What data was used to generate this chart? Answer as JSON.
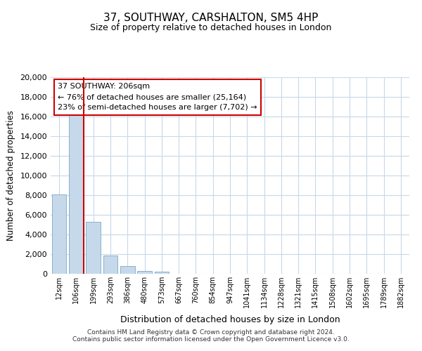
{
  "title": "37, SOUTHWAY, CARSHALTON, SM5 4HP",
  "subtitle": "Size of property relative to detached houses in London",
  "xlabel": "Distribution of detached houses by size in London",
  "ylabel": "Number of detached properties",
  "categories": [
    "12sqm",
    "106sqm",
    "199sqm",
    "293sqm",
    "386sqm",
    "480sqm",
    "573sqm",
    "667sqm",
    "760sqm",
    "854sqm",
    "947sqm",
    "1041sqm",
    "1134sqm",
    "1228sqm",
    "1321sqm",
    "1415sqm",
    "1508sqm",
    "1602sqm",
    "1695sqm",
    "1789sqm",
    "1882sqm"
  ],
  "bar_values": [
    8100,
    16500,
    5300,
    1850,
    800,
    300,
    200,
    0,
    0,
    0,
    0,
    0,
    0,
    0,
    0,
    0,
    0,
    0,
    0,
    0,
    0
  ],
  "bar_color": "#c5d9ea",
  "bar_edge_color": "#8ab0cc",
  "property_line_color": "#cc0000",
  "property_line_x": 1.5,
  "annotation_title": "37 SOUTHWAY: 206sqm",
  "annotation_line1": "← 76% of detached houses are smaller (25,164)",
  "annotation_line2": "23% of semi-detached houses are larger (7,702) →",
  "annotation_box_color": "#ffffff",
  "annotation_box_edge_color": "#cc0000",
  "ylim": [
    0,
    20000
  ],
  "yticks": [
    0,
    2000,
    4000,
    6000,
    8000,
    10000,
    12000,
    14000,
    16000,
    18000,
    20000
  ],
  "footer_line1": "Contains HM Land Registry data © Crown copyright and database right 2024.",
  "footer_line2": "Contains public sector information licensed under the Open Government Licence v3.0.",
  "background_color": "#ffffff",
  "grid_color": "#c8d8e8"
}
